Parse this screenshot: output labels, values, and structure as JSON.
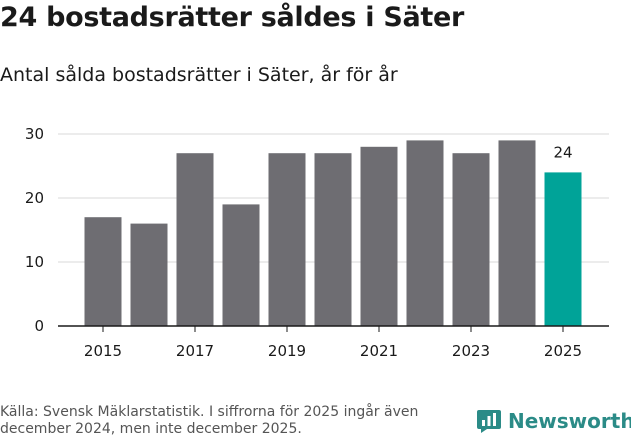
{
  "header": {
    "title": "24 bostadsrätter såldes i Säter",
    "subtitle": "Antal sålda bostadsrätter i Säter, år för år"
  },
  "footer": {
    "source": "Källa: Svensk Mäklarstatistik. I siffrorna för 2025 ingår även december 2024, men inte december 2025.",
    "brand": "Newsworthy"
  },
  "colors": {
    "bar": "#6e6d72",
    "highlight": "#00a398",
    "grid": "#d9d9d9",
    "axis": "#1a1a1a"
  },
  "chart_data": {
    "type": "bar",
    "title": "24 bostadsrätter såldes i Säter",
    "subtitle": "Antal sålda bostadsrätter i Säter, år för år",
    "categories": [
      "2015",
      "2016",
      "2017",
      "2018",
      "2019",
      "2020",
      "2021",
      "2022",
      "2023",
      "2024",
      "2025"
    ],
    "values": [
      17,
      16,
      27,
      19,
      27,
      27,
      28,
      29,
      27,
      29,
      24
    ],
    "highlight_index": 10,
    "data_labels": [
      {
        "index": 10,
        "text": "24"
      }
    ],
    "x_tick_labels": [
      "2015",
      "2017",
      "2019",
      "2021",
      "2023",
      "2025"
    ],
    "y_ticks": [
      0,
      10,
      20,
      30
    ],
    "ylim": [
      0,
      30
    ],
    "xlabel": "",
    "ylabel": "",
    "grid": true,
    "legend": "none"
  }
}
